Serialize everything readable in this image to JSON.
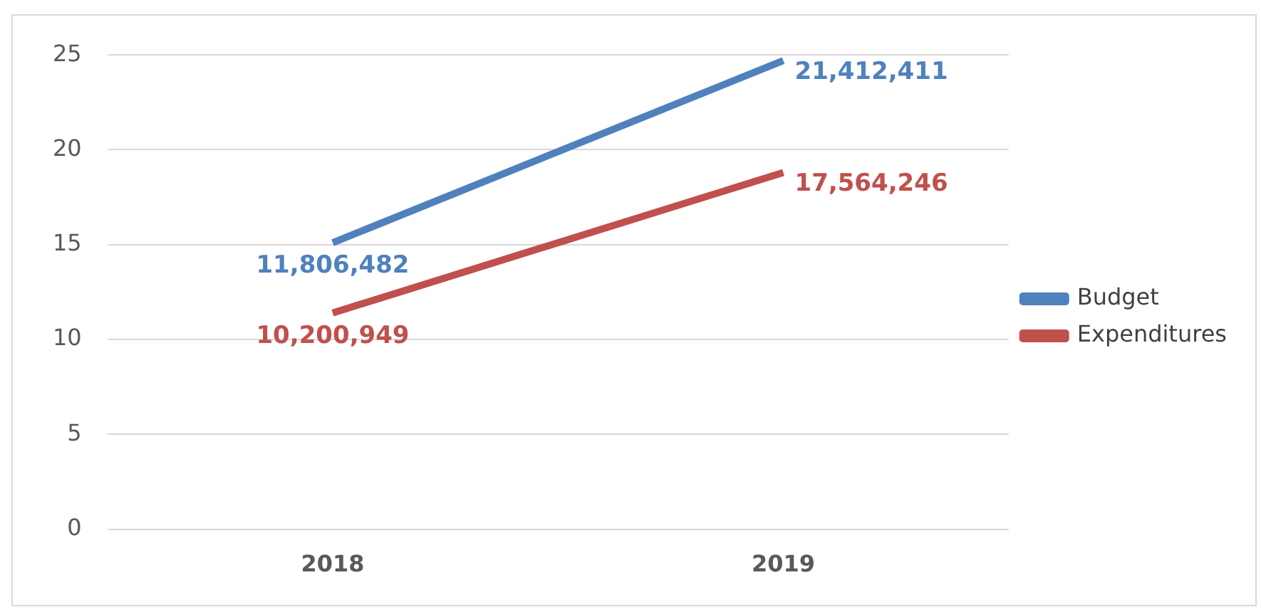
{
  "chart_data": {
    "type": "line",
    "categories": [
      "2018",
      "2019"
    ],
    "series": [
      {
        "name": "Budget",
        "color": "#4f81bd",
        "values": [
          15.1,
          24.7
        ]
      },
      {
        "name": "Expenditures",
        "color": "#c0504d",
        "values": [
          11.4,
          18.8
        ]
      }
    ],
    "annotations": [
      {
        "text": "11,806,482",
        "x": "2018",
        "y": 15.1
      },
      {
        "text": "21,412,411",
        "x": "2019",
        "y": 24.7
      },
      {
        "text": "10,200,949",
        "x": "2018",
        "y": 11.4
      },
      {
        "text": "17,564,246",
        "x": "2019",
        "y": 18.8
      }
    ],
    "ylim": [
      0,
      25
    ],
    "yticks": [
      0,
      5,
      10,
      15,
      20,
      25
    ],
    "grid": "y",
    "legend": "right",
    "marker": "none",
    "line_style": "solid"
  }
}
